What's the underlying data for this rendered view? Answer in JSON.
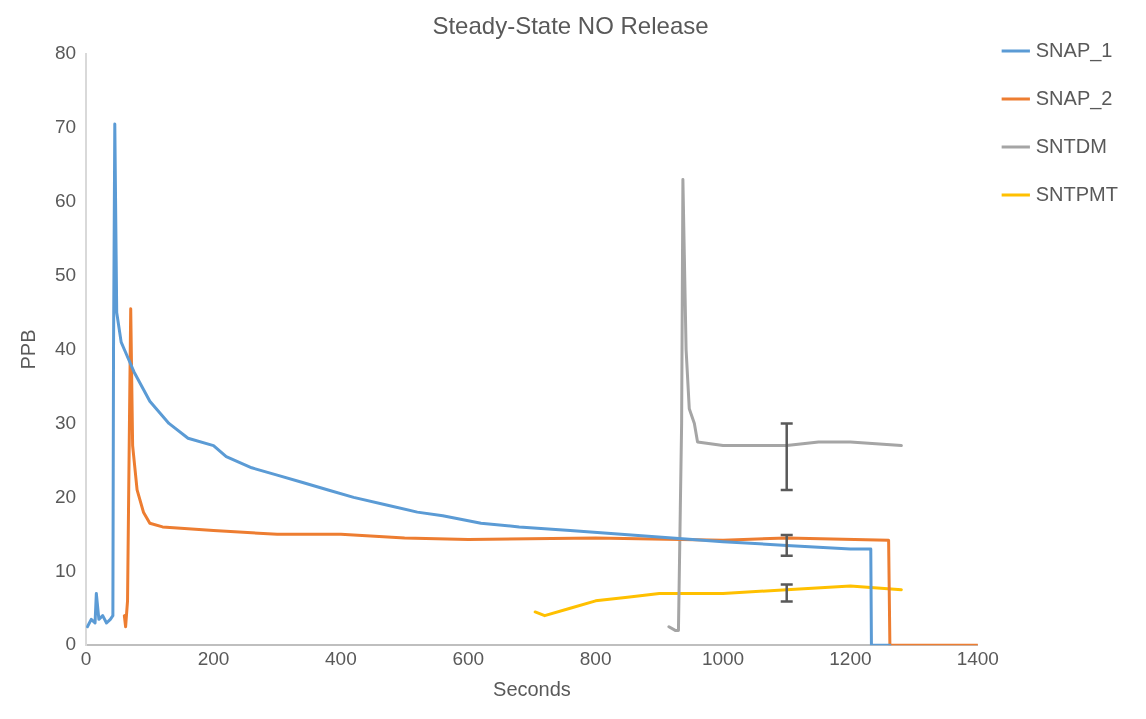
{
  "chart_data": {
    "type": "line",
    "title": "Steady-State NO Release",
    "xlabel": "Seconds",
    "ylabel": "PPB",
    "xlim": [
      0,
      1400
    ],
    "ylim": [
      0,
      80
    ],
    "xticks": [
      0,
      200,
      400,
      600,
      800,
      1000,
      1200,
      1400
    ],
    "yticks": [
      0,
      10,
      20,
      30,
      40,
      50,
      60,
      70,
      80
    ],
    "grid": false,
    "legend": "right",
    "marker": "none",
    "line_style": "solid",
    "series": [
      {
        "name": "SNAP_1",
        "color": "#5b9bd5",
        "x": [
          2,
          8,
          14,
          16,
          20,
          26,
          32,
          38,
          42,
          43,
          45,
          48,
          55,
          60,
          75,
          100,
          130,
          160,
          200,
          220,
          260,
          300,
          340,
          380,
          420,
          470,
          520,
          560,
          620,
          680,
          760,
          840,
          920,
          1000,
          1100,
          1200,
          1232,
          1233,
          1262
        ],
        "values": [
          2.5,
          3.5,
          3,
          7,
          3.5,
          4,
          3,
          3.5,
          4,
          40,
          70.5,
          45,
          41,
          40,
          37,
          33,
          30,
          28,
          27,
          25.5,
          24,
          23,
          22,
          21,
          20,
          19,
          18,
          17.5,
          16.5,
          16,
          15.5,
          15,
          14.5,
          14,
          13.5,
          13,
          13,
          0,
          0
        ],
        "errors": [
          null,
          null,
          null,
          null,
          null,
          null,
          null,
          null,
          null,
          null,
          null,
          null,
          null,
          null,
          null,
          null,
          null,
          null,
          null,
          null,
          null,
          null,
          null,
          null,
          null,
          null,
          null,
          null,
          null,
          null,
          null,
          null,
          null,
          null,
          [
            12.1,
            14.9
          ],
          null,
          null,
          null,
          null
        ]
      },
      {
        "name": "SNAP_2",
        "color": "#ed7d31",
        "x": [
          60,
          62,
          65,
          68,
          70,
          73,
          80,
          90,
          100,
          120,
          200,
          300,
          400,
          500,
          600,
          800,
          1000,
          1100,
          1260,
          1262,
          1400
        ],
        "values": [
          4,
          2.5,
          6,
          30,
          45.5,
          27,
          21,
          18,
          16.5,
          16,
          15.5,
          15,
          15,
          14.5,
          14.3,
          14.5,
          14.2,
          14.5,
          14.2,
          0,
          0
        ]
      },
      {
        "name": "SNTDM",
        "color": "#a5a5a5",
        "x": [
          915,
          925,
          930,
          935,
          937,
          942,
          947,
          955,
          960,
          1000,
          1050,
          1100,
          1150,
          1200,
          1280
        ],
        "values": [
          2.5,
          2,
          2,
          30,
          63,
          40,
          32,
          30,
          27.5,
          27,
          27,
          27,
          27.5,
          27.5,
          27
        ],
        "errors": [
          null,
          null,
          null,
          null,
          null,
          null,
          null,
          null,
          null,
          null,
          null,
          [
            21,
            30
          ],
          null,
          null,
          null
        ]
      },
      {
        "name": "SNTPMT",
        "color": "#ffc000",
        "x": [
          705,
          720,
          760,
          800,
          850,
          900,
          1000,
          1100,
          1200,
          1280
        ],
        "values": [
          4.5,
          4,
          5,
          6,
          6.5,
          7,
          7,
          7.5,
          8,
          7.5
        ],
        "errors": [
          null,
          null,
          null,
          null,
          null,
          null,
          null,
          [
            5.9,
            8.2
          ],
          null,
          null
        ]
      }
    ]
  }
}
